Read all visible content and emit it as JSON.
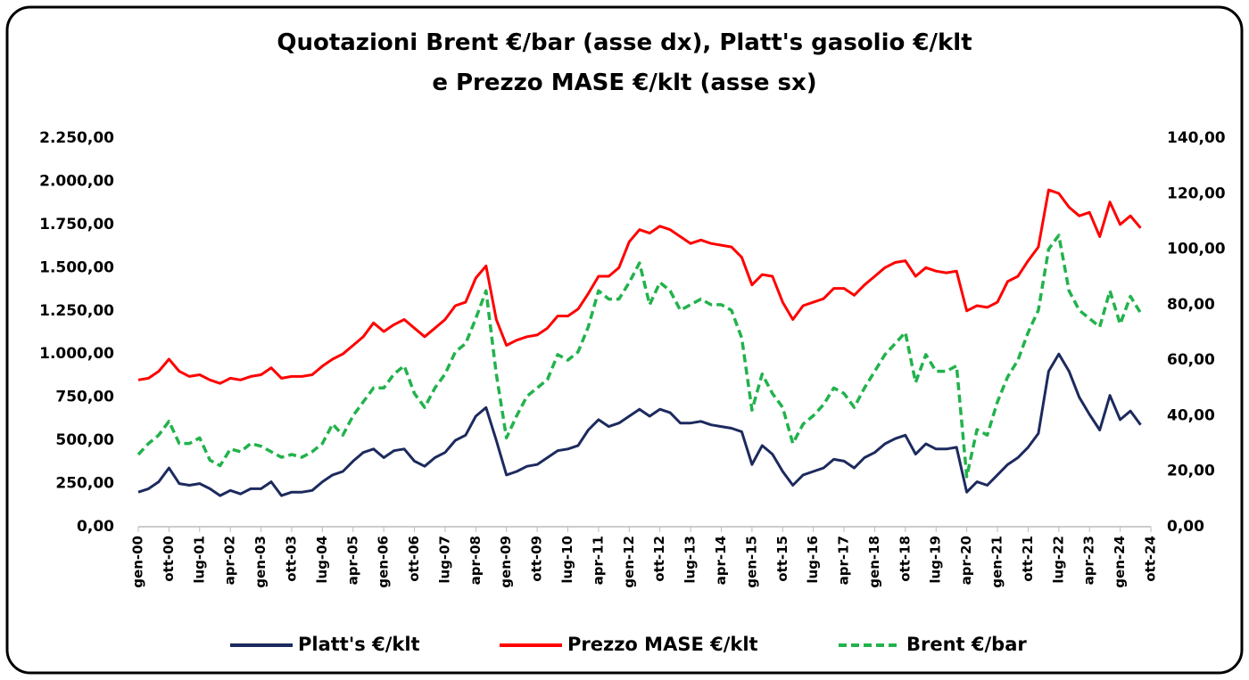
{
  "chart_data": {
    "type": "line",
    "title": [
      "Quotazioni Brent €/bar (asse dx), Platt's gasolio €/klt",
      "e Prezzo MASE €/klt (asse sx)"
    ],
    "categories": [
      "gen-00",
      null,
      null,
      "ott-00",
      null,
      null,
      "lug-01",
      null,
      null,
      "apr-02",
      null,
      null,
      "gen-03",
      null,
      null,
      "ott-03",
      null,
      null,
      "lug-04",
      null,
      null,
      "apr-05",
      null,
      null,
      "gen-06",
      null,
      null,
      "ott-06",
      null,
      null,
      "lug-07",
      null,
      null,
      "apr-08",
      null,
      null,
      "gen-09",
      null,
      null,
      "ott-09",
      null,
      null,
      "lug-10",
      null,
      null,
      "apr-11",
      null,
      null,
      "gen-12",
      null,
      null,
      "ott-12",
      null,
      null,
      "lug-13",
      null,
      null,
      "apr-14",
      null,
      null,
      "gen-15",
      null,
      null,
      "ott-15",
      null,
      null,
      "lug-16",
      null,
      null,
      "apr-17",
      null,
      null,
      "gen-18",
      null,
      null,
      "ott-18",
      null,
      null,
      "lug-19",
      null,
      null,
      "apr-20",
      null,
      null,
      "gen-21",
      null,
      null,
      "ott-21",
      null,
      null,
      "lug-22",
      null,
      null,
      "apr-23",
      null,
      null,
      "gen-24",
      null,
      null,
      "ott-24"
    ],
    "series": [
      {
        "name": "Platt's €/klt",
        "color": "#1c2a5e",
        "style": "solid",
        "values": [
          200,
          220,
          260,
          340,
          250,
          240,
          250,
          220,
          180,
          210,
          190,
          220,
          220,
          260,
          180,
          200,
          200,
          210,
          260,
          300,
          320,
          380,
          430,
          450,
          400,
          440,
          450,
          380,
          350,
          400,
          430,
          500,
          530,
          640,
          690,
          500,
          300,
          320,
          350,
          360,
          400,
          440,
          450,
          470,
          560,
          620,
          580,
          600,
          640,
          680,
          640,
          680,
          660,
          600,
          600,
          610,
          590,
          580,
          570,
          550,
          360,
          470,
          420,
          320,
          240,
          300,
          320,
          340,
          390,
          380,
          340,
          400,
          430,
          480,
          510,
          530,
          420,
          480,
          450,
          450,
          460,
          200,
          260,
          240,
          300,
          360,
          400,
          460,
          540,
          900,
          1000,
          900,
          750,
          650,
          560,
          760,
          620,
          670,
          590,
          null
        ]
      },
      {
        "name": "Prezzo MASE €/klt",
        "color": "#ff0000",
        "style": "solid",
        "values": [
          850,
          860,
          900,
          970,
          900,
          870,
          880,
          850,
          830,
          860,
          850,
          870,
          880,
          920,
          860,
          870,
          870,
          880,
          930,
          970,
          1000,
          1050,
          1100,
          1180,
          1130,
          1170,
          1200,
          1150,
          1100,
          1150,
          1200,
          1280,
          1300,
          1440,
          1510,
          1200,
          1050,
          1080,
          1100,
          1110,
          1150,
          1220,
          1220,
          1260,
          1350,
          1450,
          1450,
          1500,
          1650,
          1720,
          1700,
          1740,
          1720,
          1680,
          1640,
          1660,
          1640,
          1630,
          1620,
          1560,
          1400,
          1460,
          1450,
          1300,
          1200,
          1280,
          1300,
          1320,
          1380,
          1380,
          1340,
          1400,
          1450,
          1500,
          1530,
          1540,
          1450,
          1500,
          1480,
          1470,
          1480,
          1250,
          1280,
          1270,
          1300,
          1420,
          1450,
          1540,
          1620,
          1950,
          1930,
          1850,
          1800,
          1820,
          1680,
          1880,
          1750,
          1800,
          1730,
          null
        ]
      },
      {
        "name": "Brent €/bar",
        "color": "#22b24c",
        "style": "dashed",
        "axis": "y2",
        "values": [
          26,
          30,
          33,
          38,
          30,
          30,
          32,
          24,
          22,
          28,
          27,
          30,
          29,
          27,
          25,
          26,
          25,
          27,
          30,
          37,
          33,
          40,
          45,
          50,
          50,
          55,
          58,
          48,
          43,
          50,
          55,
          63,
          66,
          75,
          85,
          55,
          32,
          40,
          47,
          50,
          53,
          62,
          60,
          63,
          72,
          85,
          82,
          82,
          88,
          95,
          80,
          88,
          85,
          78,
          80,
          82,
          80,
          80,
          78,
          68,
          42,
          55,
          48,
          43,
          30,
          37,
          40,
          44,
          50,
          48,
          43,
          50,
          56,
          62,
          66,
          70,
          52,
          62,
          56,
          56,
          58,
          18,
          35,
          33,
          45,
          54,
          60,
          70,
          78,
          100,
          105,
          85,
          78,
          75,
          72,
          85,
          73,
          83,
          77,
          null
        ]
      }
    ],
    "ylim": [
      0,
      2250
    ],
    "yticks": [
      {
        "value": 0,
        "label": "0,00"
      },
      {
        "value": 250,
        "label": "250,00"
      },
      {
        "value": 500,
        "label": "500,00"
      },
      {
        "value": 750,
        "label": "750,00"
      },
      {
        "value": 1000,
        "label": "1.000,00"
      },
      {
        "value": 1250,
        "label": "1.250,00"
      },
      {
        "value": 1500,
        "label": "1.500,00"
      },
      {
        "value": 1750,
        "label": "1.750,00"
      },
      {
        "value": 2000,
        "label": "2.000,00"
      },
      {
        "value": 2250,
        "label": "2.250,00"
      }
    ],
    "y2lim": [
      0,
      140
    ],
    "y2ticks": [
      {
        "value": 0,
        "label": "0,00"
      },
      {
        "value": 20,
        "label": "20,00"
      },
      {
        "value": 40,
        "label": "40,00"
      },
      {
        "value": 60,
        "label": "60,00"
      },
      {
        "value": 80,
        "label": "80,00"
      },
      {
        "value": 100,
        "label": "100,00"
      },
      {
        "value": 120,
        "label": "120,00"
      },
      {
        "value": 140,
        "label": "140,00"
      }
    ],
    "grid": false,
    "legend": "bottom"
  }
}
